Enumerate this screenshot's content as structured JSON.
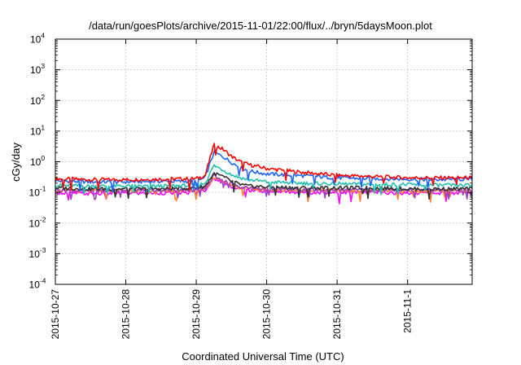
{
  "chart_data": {
    "type": "line",
    "title": "/data/run/goesPlots/archive/2015-11-01/22:00/flux/../bryn/5daysMoon.plot",
    "xlabel": "Coordinated Universal Time (UTC)",
    "ylabel": "cGy/day",
    "yscale": "log",
    "ylim": [
      0.0001,
      10000
    ],
    "xlim": [
      "2015-10-27T00:00",
      "2015-11-01T22:00"
    ],
    "grid": true,
    "legend": "none",
    "x_ticks": [
      "2015-10-27",
      "2015-10-28",
      "2015-10-29",
      "2015-10-30",
      "2015-10-31",
      "2015-11-1"
    ],
    "y_ticks": [
      {
        "value": 0.0001,
        "base": "10",
        "exp": "-4"
      },
      {
        "value": 0.001,
        "base": "10",
        "exp": "-3"
      },
      {
        "value": 0.01,
        "base": "10",
        "exp": "-2"
      },
      {
        "value": 0.1,
        "base": "10",
        "exp": "-1"
      },
      {
        "value": 1,
        "base": "10",
        "exp": "0"
      },
      {
        "value": 10,
        "base": "10",
        "exp": "1"
      },
      {
        "value": 100,
        "base": "10",
        "exp": "2"
      },
      {
        "value": 1000,
        "base": "10",
        "exp": "3"
      },
      {
        "value": 10000,
        "base": "10",
        "exp": "4"
      }
    ],
    "x": [
      "2015-10-27T00:00",
      "2015-10-27T12:00",
      "2015-10-28T00:00",
      "2015-10-28T12:00",
      "2015-10-29T00:00",
      "2015-10-29T03:00",
      "2015-10-29T06:00",
      "2015-10-29T09:00",
      "2015-10-29T12:00",
      "2015-10-29T15:00",
      "2015-10-29T18:00",
      "2015-10-30T00:00",
      "2015-10-30T12:00",
      "2015-10-31T00:00",
      "2015-10-31T12:00",
      "2015-11-01T00:00",
      "2015-11-01T12:00",
      "2015-11-01T22:00"
    ],
    "series": [
      {
        "color": "#ff0000",
        "values": [
          0.28,
          0.26,
          0.26,
          0.27,
          0.28,
          0.35,
          3.5,
          2.6,
          1.5,
          1.0,
          0.8,
          0.6,
          0.45,
          0.36,
          0.33,
          0.3,
          0.3,
          0.3
        ]
      },
      {
        "color": "#1e64ff",
        "values": [
          0.24,
          0.22,
          0.22,
          0.23,
          0.23,
          0.3,
          2.0,
          1.5,
          0.95,
          0.65,
          0.5,
          0.4,
          0.35,
          0.3,
          0.28,
          0.27,
          0.26,
          0.27
        ]
      },
      {
        "color": "#20c0b0",
        "values": [
          0.17,
          0.16,
          0.16,
          0.16,
          0.17,
          0.2,
          0.75,
          0.55,
          0.38,
          0.3,
          0.26,
          0.22,
          0.2,
          0.19,
          0.18,
          0.18,
          0.17,
          0.17
        ]
      },
      {
        "color": "#303030",
        "values": [
          0.14,
          0.13,
          0.13,
          0.13,
          0.14,
          0.16,
          0.42,
          0.33,
          0.23,
          0.18,
          0.16,
          0.15,
          0.14,
          0.14,
          0.14,
          0.13,
          0.13,
          0.13
        ]
      },
      {
        "color": "#a040c0",
        "values": [
          0.12,
          0.11,
          0.12,
          0.12,
          0.12,
          0.14,
          0.35,
          0.27,
          0.19,
          0.15,
          0.14,
          0.13,
          0.12,
          0.12,
          0.12,
          0.12,
          0.12,
          0.12
        ]
      },
      {
        "color": "#ff7f2a",
        "values": [
          0.115,
          0.11,
          0.115,
          0.115,
          0.115,
          0.135,
          0.3,
          0.24,
          0.17,
          0.14,
          0.13,
          0.12,
          0.115,
          0.115,
          0.115,
          0.11,
          0.11,
          0.115
        ]
      },
      {
        "color": "#ff00ff",
        "values": [
          0.1,
          0.09,
          0.095,
          0.095,
          0.1,
          0.12,
          0.28,
          0.22,
          0.16,
          0.13,
          0.12,
          0.11,
          0.1,
          0.1,
          0.1,
          0.095,
          0.095,
          0.095
        ]
      }
    ]
  }
}
